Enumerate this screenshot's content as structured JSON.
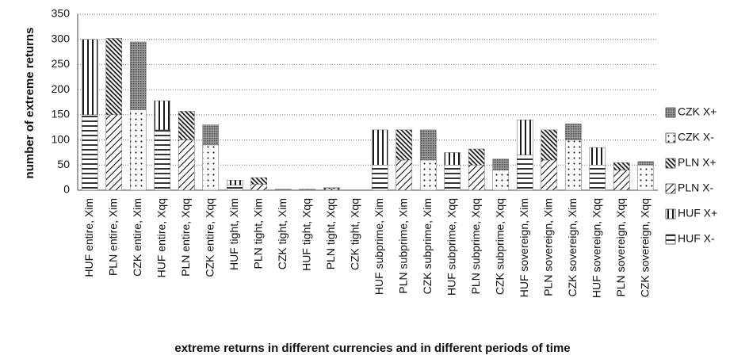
{
  "chart_data": {
    "type": "stacked_bar",
    "xlabel": "extreme returns in different currencies and in different periods of time",
    "ylabel": "number of extreme returns",
    "categories": [
      "HUF entire, Xim",
      "PLN entire, Xim",
      "CZK entire, Xim",
      "HUF entire, Xqq",
      "PLN entire, Xqq",
      "CZK entire, Xqq",
      "HUF tight, Xim",
      "PLN tight, Xim",
      "CZK tight, Xim",
      "HUF tight, Xqq",
      "PLN tight, Xqq",
      "CZK tight, Xqq",
      "HUF subprime, Xim",
      "PLN subprime, Xim",
      "CZK subprime, Xim",
      "HUF subprime, Xqq",
      "PLN subprime, Xqq",
      "CZK subprime, Xqq",
      "HUF sovereign, Xim",
      "PLN sovereign, Xim",
      "CZK sovereign, Xim",
      "HUF sovereign, Xqq",
      "PLN sovereign, Xqq",
      "CZK sovereign, Xqq"
    ],
    "series": [
      {
        "name": "HUF X-",
        "values": [
          150,
          null,
          null,
          120,
          null,
          null,
          10,
          null,
          null,
          1,
          null,
          null,
          50,
          null,
          null,
          50,
          null,
          null,
          70,
          null,
          null,
          50,
          null,
          null
        ]
      },
      {
        "name": "HUF X+",
        "values": [
          150,
          null,
          null,
          58,
          null,
          null,
          10,
          null,
          null,
          1,
          null,
          null,
          70,
          null,
          null,
          25,
          null,
          null,
          70,
          null,
          null,
          35,
          null,
          null
        ]
      },
      {
        "name": "PLN X-",
        "values": [
          null,
          150,
          null,
          null,
          100,
          null,
          null,
          12,
          null,
          null,
          3,
          null,
          null,
          60,
          null,
          null,
          50,
          null,
          null,
          60,
          null,
          null,
          40,
          null
        ]
      },
      {
        "name": "PLN X+",
        "values": [
          null,
          152,
          null,
          null,
          57,
          null,
          null,
          13,
          null,
          null,
          2,
          null,
          null,
          60,
          null,
          null,
          32,
          null,
          null,
          60,
          null,
          null,
          15,
          null
        ]
      },
      {
        "name": "CZK X-",
        "values": [
          null,
          null,
          160,
          null,
          null,
          90,
          null,
          null,
          1,
          null,
          null,
          0,
          null,
          null,
          60,
          null,
          null,
          40,
          null,
          null,
          100,
          null,
          null,
          50
        ]
      },
      {
        "name": "CZK X+",
        "values": [
          null,
          null,
          135,
          null,
          null,
          40,
          null,
          null,
          1,
          null,
          null,
          0,
          null,
          null,
          60,
          null,
          null,
          22,
          null,
          null,
          32,
          null,
          null,
          7
        ]
      }
    ],
    "ylim": [
      0,
      350
    ],
    "yticks": [
      0,
      50,
      100,
      150,
      200,
      250,
      300,
      350
    ],
    "grid": true,
    "legend": "right"
  }
}
